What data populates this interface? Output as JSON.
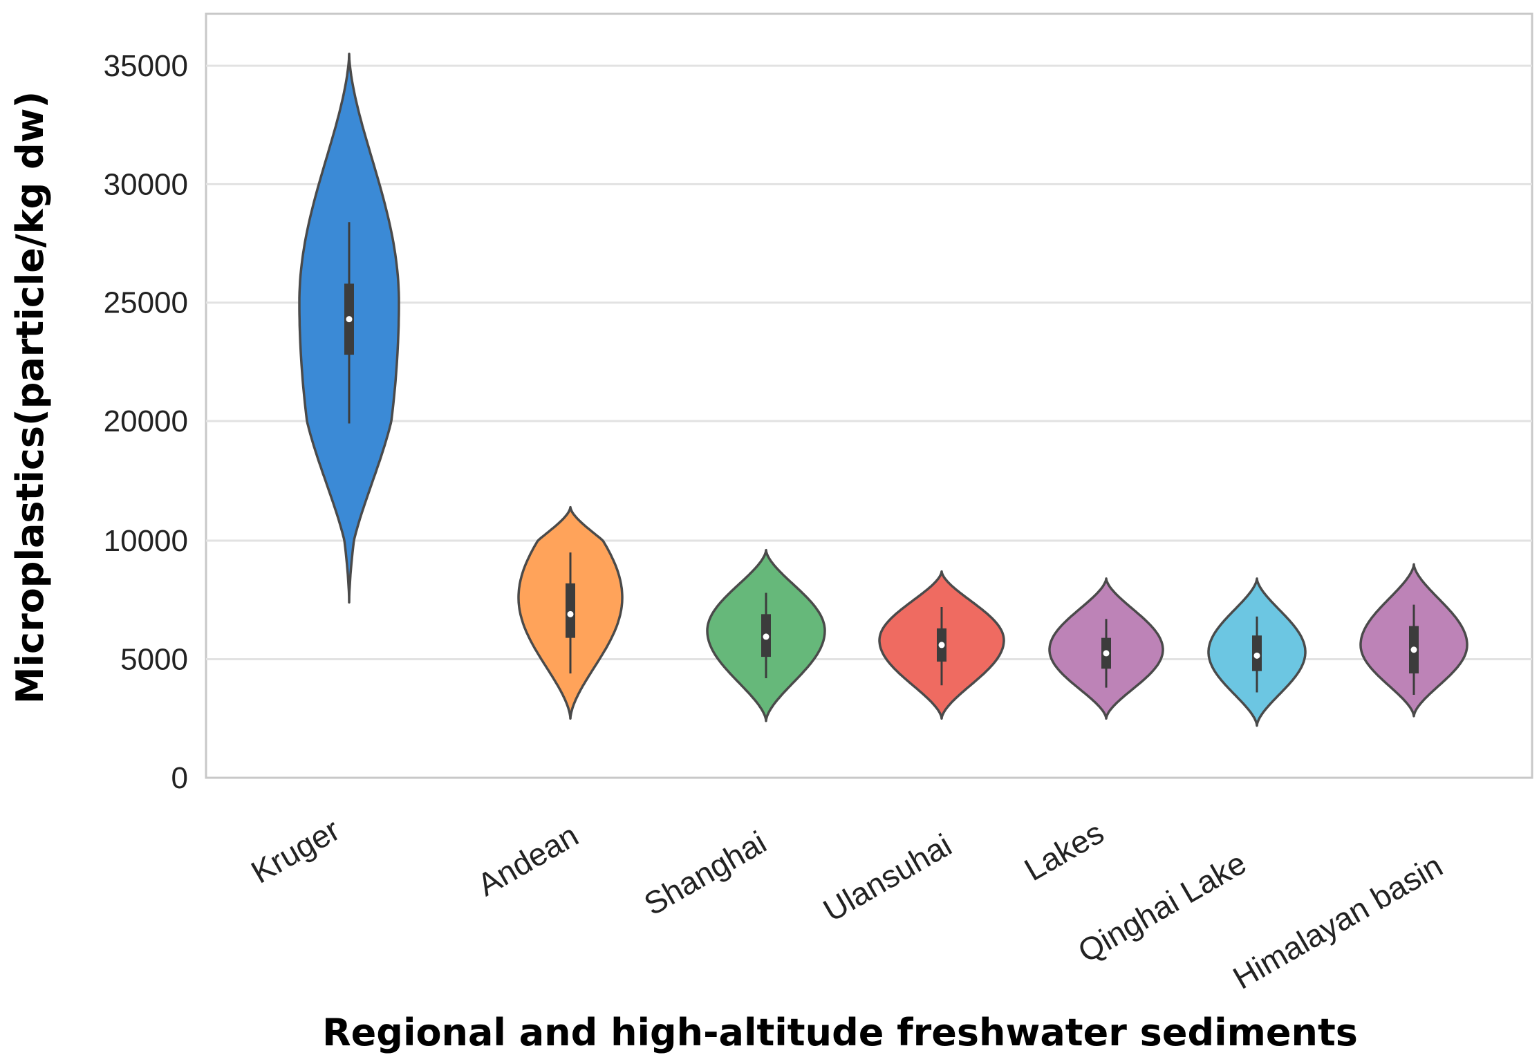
{
  "chart_data": {
    "type": "violin",
    "title": "",
    "xlabel": "Regional and high-altitude freshwater sediments",
    "ylabel": "Microplastics(particle/kg dw)",
    "y_ticks": [
      0,
      5000,
      10000,
      20000,
      25000,
      30000,
      35000
    ],
    "y_tick_labels": [
      "0",
      "5000",
      "10000",
      "20000",
      "25000",
      "30000",
      "35000"
    ],
    "y_scale_note": "axis is piecewise: 0-10000 and 20000-35000 use equal spacing per 5000 step",
    "grid": true,
    "legend": "none",
    "categories": [
      "Kruger",
      "Andean",
      "Shanghai",
      "Ulansuhai",
      "Lakes",
      "Qinghai Lake",
      "Himalayan basin"
    ],
    "series": [
      {
        "name": "Kruger",
        "color": "#3b8ad6",
        "min": 7400,
        "max": 35500,
        "widest_at": 25000,
        "q1": 22800,
        "median": 24300,
        "q3": 25800,
        "whisker_low": 19800,
        "whisker_high": 28400
      },
      {
        "name": "Andean",
        "color": "#ffa35a",
        "min": 2500,
        "max": 12800,
        "widest_at": 7600,
        "q1": 5900,
        "median": 6900,
        "q3": 8200,
        "whisker_low": 4400,
        "whisker_high": 9500
      },
      {
        "name": "Shanghai",
        "color": "#66b87a",
        "min": 2400,
        "max": 9600,
        "widest_at": 6200,
        "q1": 5100,
        "median": 5950,
        "q3": 6900,
        "whisker_low": 4200,
        "whisker_high": 7800
      },
      {
        "name": "Ulansuhai",
        "color": "#ef6b61",
        "min": 2500,
        "max": 8700,
        "widest_at": 5800,
        "q1": 4900,
        "median": 5600,
        "q3": 6300,
        "whisker_low": 3900,
        "whisker_high": 7200
      },
      {
        "name": "Lakes",
        "color": "#bd83b7",
        "min": 2500,
        "max": 8400,
        "widest_at": 5400,
        "q1": 4600,
        "median": 5250,
        "q3": 5900,
        "whisker_low": 3800,
        "whisker_high": 6700
      },
      {
        "name": "Qinghai Lake",
        "color": "#6cc6e2",
        "min": 2200,
        "max": 8400,
        "widest_at": 5300,
        "q1": 4500,
        "median": 5150,
        "q3": 6000,
        "whisker_low": 3600,
        "whisker_high": 6800
      },
      {
        "name": "Himalayan basin",
        "color": "#bd83b7",
        "min": 2600,
        "max": 9000,
        "widest_at": 5600,
        "q1": 4400,
        "median": 5400,
        "q3": 6400,
        "whisker_low": 3500,
        "whisker_high": 7300
      }
    ]
  }
}
